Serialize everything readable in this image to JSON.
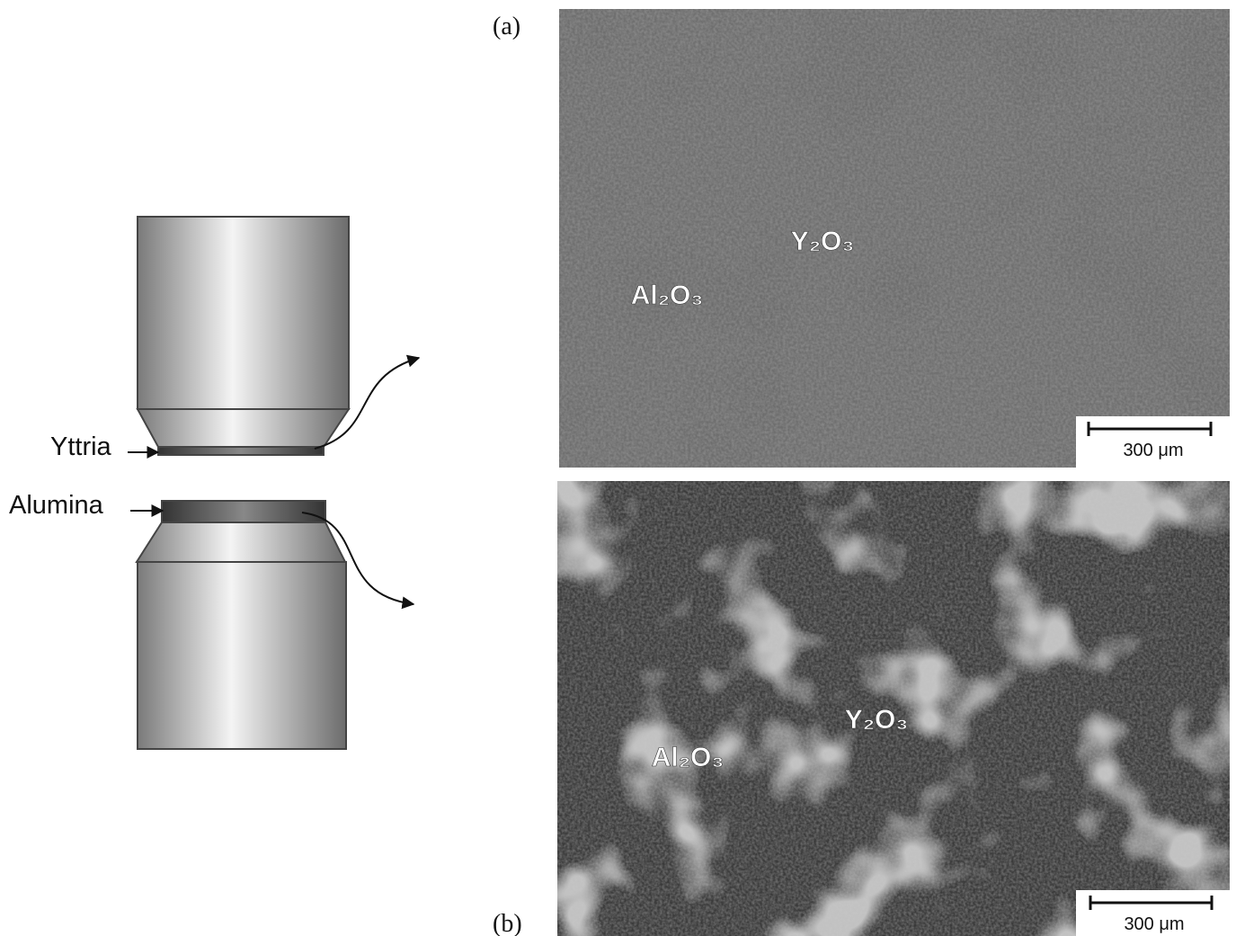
{
  "diagram": {
    "labels": {
      "yttria": "Yttria",
      "alumina": "Alumina"
    },
    "panels": [
      {
        "tag": "(a)",
        "phases": [
          "Y₂O₃",
          "Al₂O₃"
        ],
        "scale_bar": "300 μm"
      },
      {
        "tag": "(b)",
        "phases": [
          "Y₂O₃",
          "Al₂O₃"
        ],
        "scale_bar": "300 μm"
      }
    ]
  }
}
